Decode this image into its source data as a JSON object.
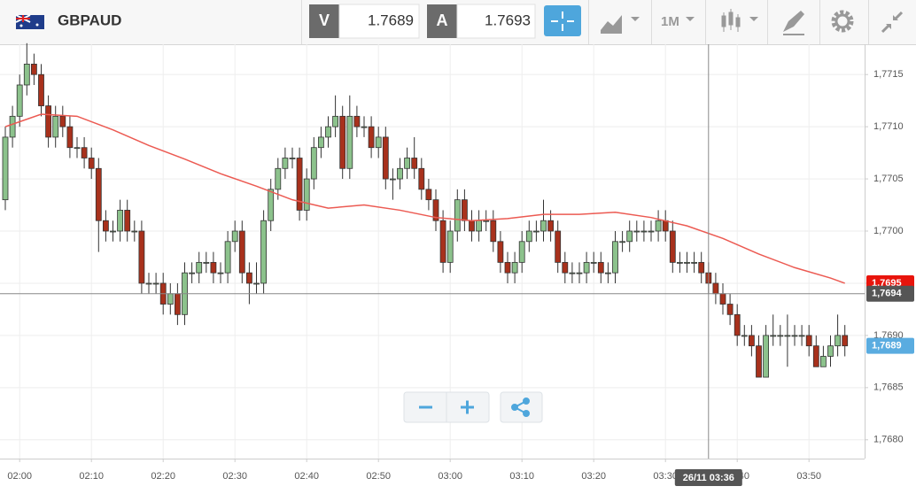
{
  "header": {
    "symbol": "GBPAUD",
    "bid_label": "V",
    "bid": "1.7689",
    "ask_label": "A",
    "ask": "1.7693",
    "timeframe": "1M"
  },
  "chart_data": {
    "type": "candlestick",
    "x": [
      "01:58",
      "01:59",
      "02:00",
      "02:01",
      "02:02",
      "02:03",
      "02:04",
      "02:05",
      "02:06",
      "02:07",
      "02:08",
      "02:09",
      "02:10",
      "02:11",
      "02:12",
      "02:13",
      "02:14",
      "02:15",
      "02:16",
      "02:17",
      "02:18",
      "02:19",
      "02:20",
      "02:21",
      "02:22",
      "02:23",
      "02:24",
      "02:25",
      "02:26",
      "02:27",
      "02:28",
      "02:29",
      "02:30",
      "02:31",
      "02:32",
      "02:33",
      "02:34",
      "02:35",
      "02:36",
      "02:37",
      "02:38",
      "02:39",
      "02:40",
      "02:41",
      "02:42",
      "02:43",
      "02:44",
      "02:45",
      "02:46",
      "02:47",
      "02:48",
      "02:49",
      "02:50",
      "02:51",
      "02:52",
      "02:53",
      "02:54",
      "02:55",
      "02:56",
      "02:57",
      "02:58",
      "02:59",
      "03:00",
      "03:01",
      "03:02",
      "03:03",
      "03:04",
      "03:05",
      "03:06",
      "03:07",
      "03:08",
      "03:09",
      "03:10",
      "03:11",
      "03:12",
      "03:13",
      "03:14",
      "03:15",
      "03:16",
      "03:17",
      "03:18",
      "03:19",
      "03:20",
      "03:21",
      "03:22",
      "03:23",
      "03:24",
      "03:25",
      "03:26",
      "03:27",
      "03:28",
      "03:29",
      "03:30",
      "03:31",
      "03:32",
      "03:33",
      "03:34",
      "03:35",
      "03:36",
      "03:37",
      "03:38",
      "03:39",
      "03:40",
      "03:41",
      "03:42",
      "03:43",
      "03:44",
      "03:45",
      "03:46",
      "03:47",
      "03:48",
      "03:49",
      "03:50",
      "03:51",
      "03:52",
      "03:53",
      "03:54",
      "03:55"
    ],
    "open": [
      1.7703,
      1.7709,
      1.7711,
      1.7714,
      1.7716,
      1.7715,
      1.7712,
      1.7709,
      1.7711,
      1.771,
      1.7708,
      1.7708,
      1.7707,
      1.7706,
      1.7701,
      1.77,
      1.77,
      1.7702,
      1.77,
      1.77,
      1.7695,
      1.7695,
      1.7695,
      1.7693,
      1.7694,
      1.7692,
      1.7696,
      1.7696,
      1.7697,
      1.7697,
      1.7696,
      1.7696,
      1.7699,
      1.77,
      1.7696,
      1.7695,
      1.7695,
      1.7701,
      1.7704,
      1.7706,
      1.7707,
      1.7707,
      1.7702,
      1.7705,
      1.7708,
      1.7709,
      1.771,
      1.7711,
      1.7706,
      1.7711,
      1.771,
      1.771,
      1.7708,
      1.7709,
      1.7705,
      1.7705,
      1.7706,
      1.7707,
      1.7706,
      1.7704,
      1.7703,
      1.7701,
      1.7697,
      1.77,
      1.7703,
      1.7701,
      1.77,
      1.7701,
      1.7701,
      1.7699,
      1.7697,
      1.7696,
      1.7697,
      1.7699,
      1.77,
      1.77,
      1.7701,
      1.77,
      1.7697,
      1.7696,
      1.7696,
      1.7696,
      1.7697,
      1.7697,
      1.7696,
      1.7696,
      1.7699,
      1.7699,
      1.77,
      1.77,
      1.77,
      1.77,
      1.7701,
      1.77,
      1.7697,
      1.7697,
      1.7697,
      1.7697,
      1.7696,
      1.7695,
      1.7694,
      1.7693,
      1.7692,
      1.769,
      1.769,
      1.7689,
      1.7686,
      1.769,
      1.769,
      1.769,
      1.769,
      1.769,
      1.769,
      1.7689,
      1.7687,
      1.7688,
      1.7689,
      1.769
    ],
    "high": [
      1.771,
      1.7712,
      1.7715,
      1.7718,
      1.7717,
      1.7716,
      1.7713,
      1.7712,
      1.7712,
      1.7711,
      1.7709,
      1.7709,
      1.7708,
      1.7707,
      1.7702,
      1.7701,
      1.7703,
      1.7703,
      1.7701,
      1.7701,
      1.7696,
      1.7696,
      1.7696,
      1.7695,
      1.7695,
      1.7697,
      1.7697,
      1.7698,
      1.7698,
      1.7698,
      1.7697,
      1.77,
      1.7701,
      1.7701,
      1.7697,
      1.7697,
      1.7702,
      1.7705,
      1.7707,
      1.7708,
      1.7708,
      1.7708,
      1.7706,
      1.7709,
      1.771,
      1.7711,
      1.7713,
      1.7712,
      1.7713,
      1.7712,
      1.7711,
      1.7711,
      1.771,
      1.771,
      1.7706,
      1.7707,
      1.7708,
      1.7709,
      1.7707,
      1.7705,
      1.7704,
      1.7702,
      1.7701,
      1.7704,
      1.7704,
      1.7702,
      1.7702,
      1.7702,
      1.7702,
      1.77,
      1.7698,
      1.7698,
      1.77,
      1.7701,
      1.7701,
      1.7703,
      1.7702,
      1.7701,
      1.7698,
      1.7697,
      1.7697,
      1.7698,
      1.7698,
      1.7698,
      1.7697,
      1.77,
      1.77,
      1.7701,
      1.7701,
      1.7701,
      1.7701,
      1.7702,
      1.7702,
      1.7701,
      1.7698,
      1.7698,
      1.7698,
      1.7698,
      1.7697,
      1.7696,
      1.7695,
      1.7694,
      1.7693,
      1.7691,
      1.7691,
      1.769,
      1.7691,
      1.7692,
      1.7691,
      1.7692,
      1.7691,
      1.7691,
      1.7691,
      1.769,
      1.7689,
      1.769,
      1.7692,
      1.7691
    ],
    "low": [
      1.7702,
      1.7708,
      1.771,
      1.7713,
      1.7714,
      1.7711,
      1.7708,
      1.7708,
      1.7709,
      1.7707,
      1.7707,
      1.7706,
      1.7705,
      1.7698,
      1.7699,
      1.7699,
      1.7699,
      1.7699,
      1.7699,
      1.7694,
      1.7694,
      1.7694,
      1.7692,
      1.7692,
      1.7691,
      1.7691,
      1.7695,
      1.7695,
      1.7696,
      1.7695,
      1.7695,
      1.7695,
      1.7698,
      1.7695,
      1.7693,
      1.7694,
      1.7694,
      1.77,
      1.7703,
      1.7705,
      1.7706,
      1.7701,
      1.7701,
      1.7704,
      1.7707,
      1.7708,
      1.7709,
      1.7705,
      1.7705,
      1.7709,
      1.7709,
      1.7707,
      1.7707,
      1.7704,
      1.7703,
      1.7704,
      1.7705,
      1.7705,
      1.7703,
      1.7702,
      1.77,
      1.7696,
      1.7696,
      1.7699,
      1.77,
      1.7699,
      1.7699,
      1.77,
      1.7698,
      1.7696,
      1.7695,
      1.7695,
      1.7696,
      1.7698,
      1.7699,
      1.7699,
      1.7699,
      1.7696,
      1.7695,
      1.7695,
      1.7695,
      1.7695,
      1.7696,
      1.7695,
      1.7695,
      1.7695,
      1.7698,
      1.7698,
      1.7699,
      1.7699,
      1.7699,
      1.7699,
      1.7699,
      1.7696,
      1.7696,
      1.7696,
      1.7696,
      1.7695,
      1.7694,
      1.7693,
      1.7692,
      1.7691,
      1.7689,
      1.7689,
      1.7688,
      1.7686,
      1.7686,
      1.7689,
      1.7689,
      1.7687,
      1.7689,
      1.7689,
      1.7688,
      1.7687,
      1.7687,
      1.7687,
      1.7688,
      1.7688
    ],
    "close": [
      1.7709,
      1.7711,
      1.7714,
      1.7716,
      1.7715,
      1.7712,
      1.7709,
      1.7711,
      1.771,
      1.7708,
      1.7708,
      1.7707,
      1.7706,
      1.7701,
      1.77,
      1.77,
      1.7702,
      1.77,
      1.77,
      1.7695,
      1.7695,
      1.7695,
      1.7693,
      1.7694,
      1.7692,
      1.7696,
      1.7696,
      1.7697,
      1.7697,
      1.7696,
      1.7696,
      1.7699,
      1.77,
      1.7696,
      1.7695,
      1.7695,
      1.7701,
      1.7704,
      1.7706,
      1.7707,
      1.7707,
      1.7702,
      1.7705,
      1.7708,
      1.7709,
      1.771,
      1.7711,
      1.7706,
      1.7711,
      1.771,
      1.771,
      1.7708,
      1.7709,
      1.7705,
      1.7705,
      1.7706,
      1.7707,
      1.7706,
      1.7704,
      1.7703,
      1.7701,
      1.7697,
      1.77,
      1.7703,
      1.7701,
      1.77,
      1.7701,
      1.7701,
      1.7699,
      1.7697,
      1.7696,
      1.7697,
      1.7699,
      1.77,
      1.77,
      1.7701,
      1.77,
      1.7697,
      1.7696,
      1.7696,
      1.7696,
      1.7697,
      1.7697,
      1.7696,
      1.7696,
      1.7699,
      1.7699,
      1.77,
      1.77,
      1.77,
      1.77,
      1.7701,
      1.77,
      1.7697,
      1.7697,
      1.7697,
      1.7697,
      1.7696,
      1.7695,
      1.7694,
      1.7693,
      1.7692,
      1.769,
      1.769,
      1.7689,
      1.7686,
      1.769,
      1.769,
      1.769,
      1.769,
      1.769,
      1.769,
      1.7689,
      1.7687,
      1.7688,
      1.7689,
      1.769,
      1.7689
    ],
    "up_color": "#8cc28c",
    "down_color": "#a8311c",
    "ma": {
      "color": "#ec5a52",
      "x": [
        "01:58",
        "02:03",
        "02:08",
        "02:13",
        "02:18",
        "02:23",
        "02:28",
        "02:33",
        "02:38",
        "02:43",
        "02:48",
        "02:53",
        "02:58",
        "03:03",
        "03:08",
        "03:13",
        "03:18",
        "03:23",
        "03:28",
        "03:33",
        "03:38",
        "03:43",
        "03:48",
        "03:53",
        "03:55"
      ],
      "values": [
        1.771,
        1.77112,
        1.7711,
        1.77097,
        1.77082,
        1.77069,
        1.77055,
        1.77043,
        1.7703,
        1.77022,
        1.77025,
        1.7702,
        1.77013,
        1.7701,
        1.77012,
        1.77016,
        1.77016,
        1.77018,
        1.77013,
        1.77005,
        1.76993,
        1.76978,
        1.76965,
        1.76955,
        1.7695
      ]
    },
    "ylim": [
      1.76782,
      1.77179
    ],
    "yticks": [
      {
        "value": 1.768,
        "label": "1,7680"
      },
      {
        "value": 1.7685,
        "label": "1,7685"
      },
      {
        "value": 1.769,
        "label": "1,7690"
      },
      {
        "value": 1.7695,
        "label": "1,7695"
      },
      {
        "value": 1.77,
        "label": "1,7700"
      },
      {
        "value": 1.7705,
        "label": "1,7705"
      },
      {
        "value": 1.771,
        "label": "1,7710"
      },
      {
        "value": 1.7715,
        "label": "1,7715"
      }
    ],
    "grid": true,
    "price_labels": [
      {
        "value": 1.7695,
        "label": "1,7695",
        "color": "#e8140c"
      },
      {
        "value": 1.7689,
        "label": "1,7689",
        "color": "#5aace0"
      }
    ],
    "crosshair": {
      "x": "03:36",
      "x_label": "26/11 03:36",
      "y": {
        "value": 1.7694,
        "label": "1,7694"
      },
      "color": "#555555"
    }
  }
}
